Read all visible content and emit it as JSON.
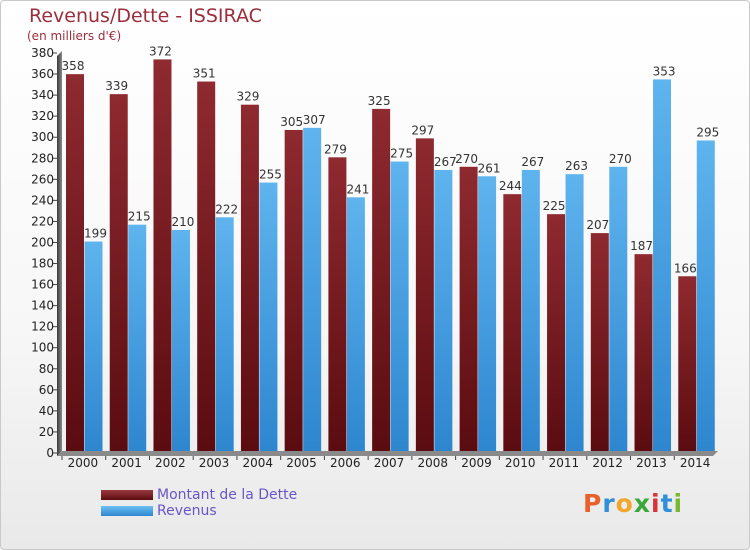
{
  "title": "Revenus/Dette - ISSIRAC",
  "subtitle": "(en milliers d'€)",
  "chart_data": {
    "type": "bar",
    "categories": [
      "2000",
      "2001",
      "2002",
      "2003",
      "2004",
      "2005",
      "2006",
      "2007",
      "2008",
      "2009",
      "2010",
      "2011",
      "2012",
      "2013",
      "2014"
    ],
    "series": [
      {
        "name": "Montant de la Dette",
        "color": "#7a1f24",
        "values": [
          358,
          339,
          372,
          351,
          329,
          305,
          279,
          325,
          297,
          270,
          244,
          225,
          207,
          187,
          166
        ]
      },
      {
        "name": "Revenus",
        "color": "#4aa3e3",
        "values": [
          199,
          215,
          210,
          222,
          255,
          307,
          241,
          275,
          267,
          261,
          267,
          263,
          270,
          353,
          295
        ]
      }
    ],
    "ylim": [
      0,
      380
    ],
    "ytick_step": 20,
    "grid": false,
    "legend": "bottom-left"
  },
  "legend": {
    "debt_label": "Montant de la Dette",
    "revenue_label": "Revenus"
  },
  "logo": {
    "letters": [
      "P",
      "r",
      "o",
      "x",
      "i",
      "t",
      "i"
    ],
    "colors": [
      "#e8602c",
      "#2f8fd8",
      "#f2a72a",
      "#3aa83a",
      "#d8333a",
      "#2f8fd8",
      "#7ab82f"
    ]
  }
}
